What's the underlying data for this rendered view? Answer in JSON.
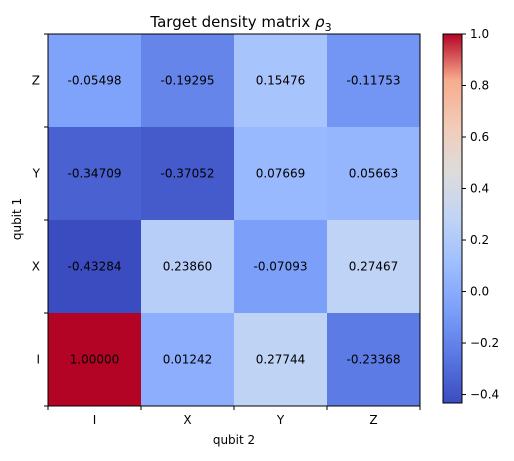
{
  "chart_data": {
    "type": "heatmap",
    "title_main": "Target density matrix ",
    "title_symbol": "ρ",
    "title_subscript": "3",
    "xlabel": "qubit 2",
    "ylabel": "qubit 1",
    "x_categories": [
      "I",
      "X",
      "Y",
      "Z"
    ],
    "y_categories_bottom_to_top": [
      "I",
      "X",
      "Y",
      "Z"
    ],
    "value_labels_top_to_bottom": [
      [
        "-0.05498",
        "-0.19295",
        "0.15476",
        "-0.11753"
      ],
      [
        "-0.34709",
        "-0.37052",
        "0.07669",
        "0.05663"
      ],
      [
        "-0.43284",
        "0.23860",
        "-0.07093",
        "0.27467"
      ],
      [
        "1.00000",
        "0.01242",
        "0.27744",
        "-0.23368"
      ]
    ],
    "values_top_to_bottom": [
      [
        -0.05498,
        -0.19295,
        0.15476,
        -0.11753
      ],
      [
        -0.34709,
        -0.37052,
        0.07669,
        0.05663
      ],
      [
        -0.43284,
        0.2386,
        -0.07093,
        0.27467
      ],
      [
        1.0,
        0.01242,
        0.27744,
        -0.23368
      ]
    ],
    "colorbar": {
      "tick_labels": [
        "1.0",
        "0.8",
        "0.6",
        "0.4",
        "0.2",
        "0.0",
        "−0.2",
        "−0.4"
      ],
      "tick_values": [
        1.0,
        0.8,
        0.6,
        0.4,
        0.2,
        0.0,
        -0.2,
        -0.4
      ],
      "range": [
        -0.43284,
        1.0
      ],
      "colormap": "coolwarm",
      "stops": [
        {
          "value": 0.0,
          "color": "#3b4cc0"
        },
        {
          "value": 0.125,
          "color": "#5977e3"
        },
        {
          "value": 0.25,
          "color": "#7b9ff9"
        },
        {
          "value": 0.375,
          "color": "#9ebeff"
        },
        {
          "value": 0.5,
          "color": "#c0d4f5"
        },
        {
          "value": 0.625,
          "color": "#dddcdc"
        },
        {
          "value": 0.75,
          "color": "#f2cbb7"
        },
        {
          "value": 0.875,
          "color": "#f7ac8e"
        },
        {
          "value": 1.0,
          "color": "#b40426"
        }
      ]
    },
    "grid": false,
    "legend": "colorbar-right"
  }
}
